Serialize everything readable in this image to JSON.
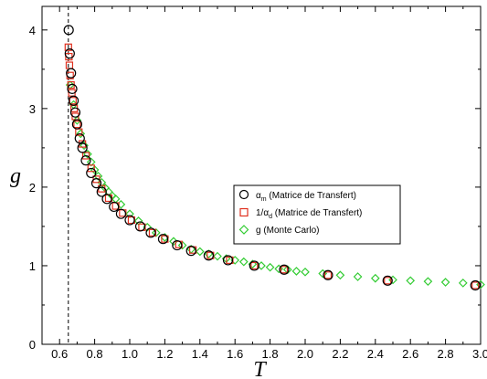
{
  "chart_data": {
    "type": "scatter",
    "xlabel": "T",
    "ylabel": "g",
    "xlim": [
      0.5,
      3.0
    ],
    "ylim": [
      0,
      4.3
    ],
    "xticks": [
      "0.6",
      "0.8",
      "1.0",
      "1.2",
      "1.4",
      "1.6",
      "1.8",
      "2.0",
      "2.2",
      "2.4",
      "2.6",
      "2.8",
      "3.0"
    ],
    "yticks": [
      "0",
      "1",
      "2",
      "3",
      "4"
    ],
    "grid": false,
    "legend_position": "middle-right",
    "critical_line_x": 0.65,
    "series": [
      {
        "name_main": "α",
        "name_sub": "m",
        "name_rest": " (Matrice de Transfert)",
        "marker": "circle",
        "color": "#000000",
        "x": [
          0.652,
          0.658,
          0.665,
          0.672,
          0.68,
          0.69,
          0.7,
          0.715,
          0.73,
          0.75,
          0.78,
          0.81,
          0.84,
          0.87,
          0.91,
          0.95,
          1.0,
          1.06,
          1.12,
          1.19,
          1.27,
          1.35,
          1.45,
          1.56,
          1.71,
          1.88,
          2.13,
          2.47,
          2.97
        ],
        "y": [
          4.0,
          3.7,
          3.45,
          3.25,
          3.1,
          2.95,
          2.8,
          2.62,
          2.5,
          2.34,
          2.18,
          2.05,
          1.94,
          1.85,
          1.75,
          1.66,
          1.58,
          1.5,
          1.42,
          1.34,
          1.26,
          1.19,
          1.13,
          1.07,
          1.0,
          0.95,
          0.88,
          0.81,
          0.75
        ]
      },
      {
        "name_main": "1/α",
        "name_sub": "d",
        "name_rest": " (Matrice de Transfert)",
        "marker": "square",
        "color": "#e0301e",
        "x": [
          0.65,
          0.653,
          0.656,
          0.66,
          0.665,
          0.67,
          0.676,
          0.683,
          0.69,
          0.7,
          0.71,
          0.73,
          0.75,
          0.78,
          0.81,
          0.84,
          0.88,
          0.92,
          0.96,
          1.01,
          1.07,
          1.13,
          1.2,
          1.28,
          1.36,
          1.46,
          1.57,
          1.71,
          1.88,
          2.13,
          2.47,
          2.97
        ],
        "y": [
          3.78,
          3.66,
          3.55,
          3.42,
          3.3,
          3.2,
          3.1,
          3.0,
          2.9,
          2.8,
          2.7,
          2.55,
          2.4,
          2.24,
          2.1,
          1.98,
          1.86,
          1.76,
          1.67,
          1.58,
          1.49,
          1.42,
          1.34,
          1.27,
          1.2,
          1.13,
          1.07,
          1.0,
          0.95,
          0.88,
          0.81,
          0.75
        ]
      },
      {
        "name_main": "g (Monte Carlo)",
        "name_sub": "",
        "name_rest": "",
        "marker": "diamond",
        "color": "#33cc33",
        "x": [
          0.66,
          0.68,
          0.7,
          0.72,
          0.74,
          0.76,
          0.78,
          0.8,
          0.82,
          0.84,
          0.86,
          0.88,
          0.9,
          0.92,
          0.95,
          1.0,
          1.05,
          1.1,
          1.15,
          1.2,
          1.25,
          1.3,
          1.35,
          1.4,
          1.45,
          1.5,
          1.55,
          1.6,
          1.65,
          1.7,
          1.75,
          1.8,
          1.85,
          1.9,
          1.95,
          2.0,
          2.1,
          2.2,
          2.3,
          2.4,
          2.5,
          2.6,
          2.7,
          2.8,
          2.9,
          3.0
        ],
        "y": [
          3.3,
          3.05,
          2.85,
          2.68,
          2.53,
          2.42,
          2.32,
          2.22,
          2.14,
          2.06,
          1.99,
          1.94,
          1.89,
          1.85,
          1.78,
          1.66,
          1.57,
          1.49,
          1.42,
          1.36,
          1.31,
          1.26,
          1.21,
          1.18,
          1.15,
          1.12,
          1.09,
          1.07,
          1.05,
          1.02,
          1.0,
          0.98,
          0.96,
          0.95,
          0.93,
          0.92,
          0.9,
          0.88,
          0.86,
          0.84,
          0.82,
          0.81,
          0.8,
          0.79,
          0.78,
          0.76
        ]
      }
    ]
  }
}
